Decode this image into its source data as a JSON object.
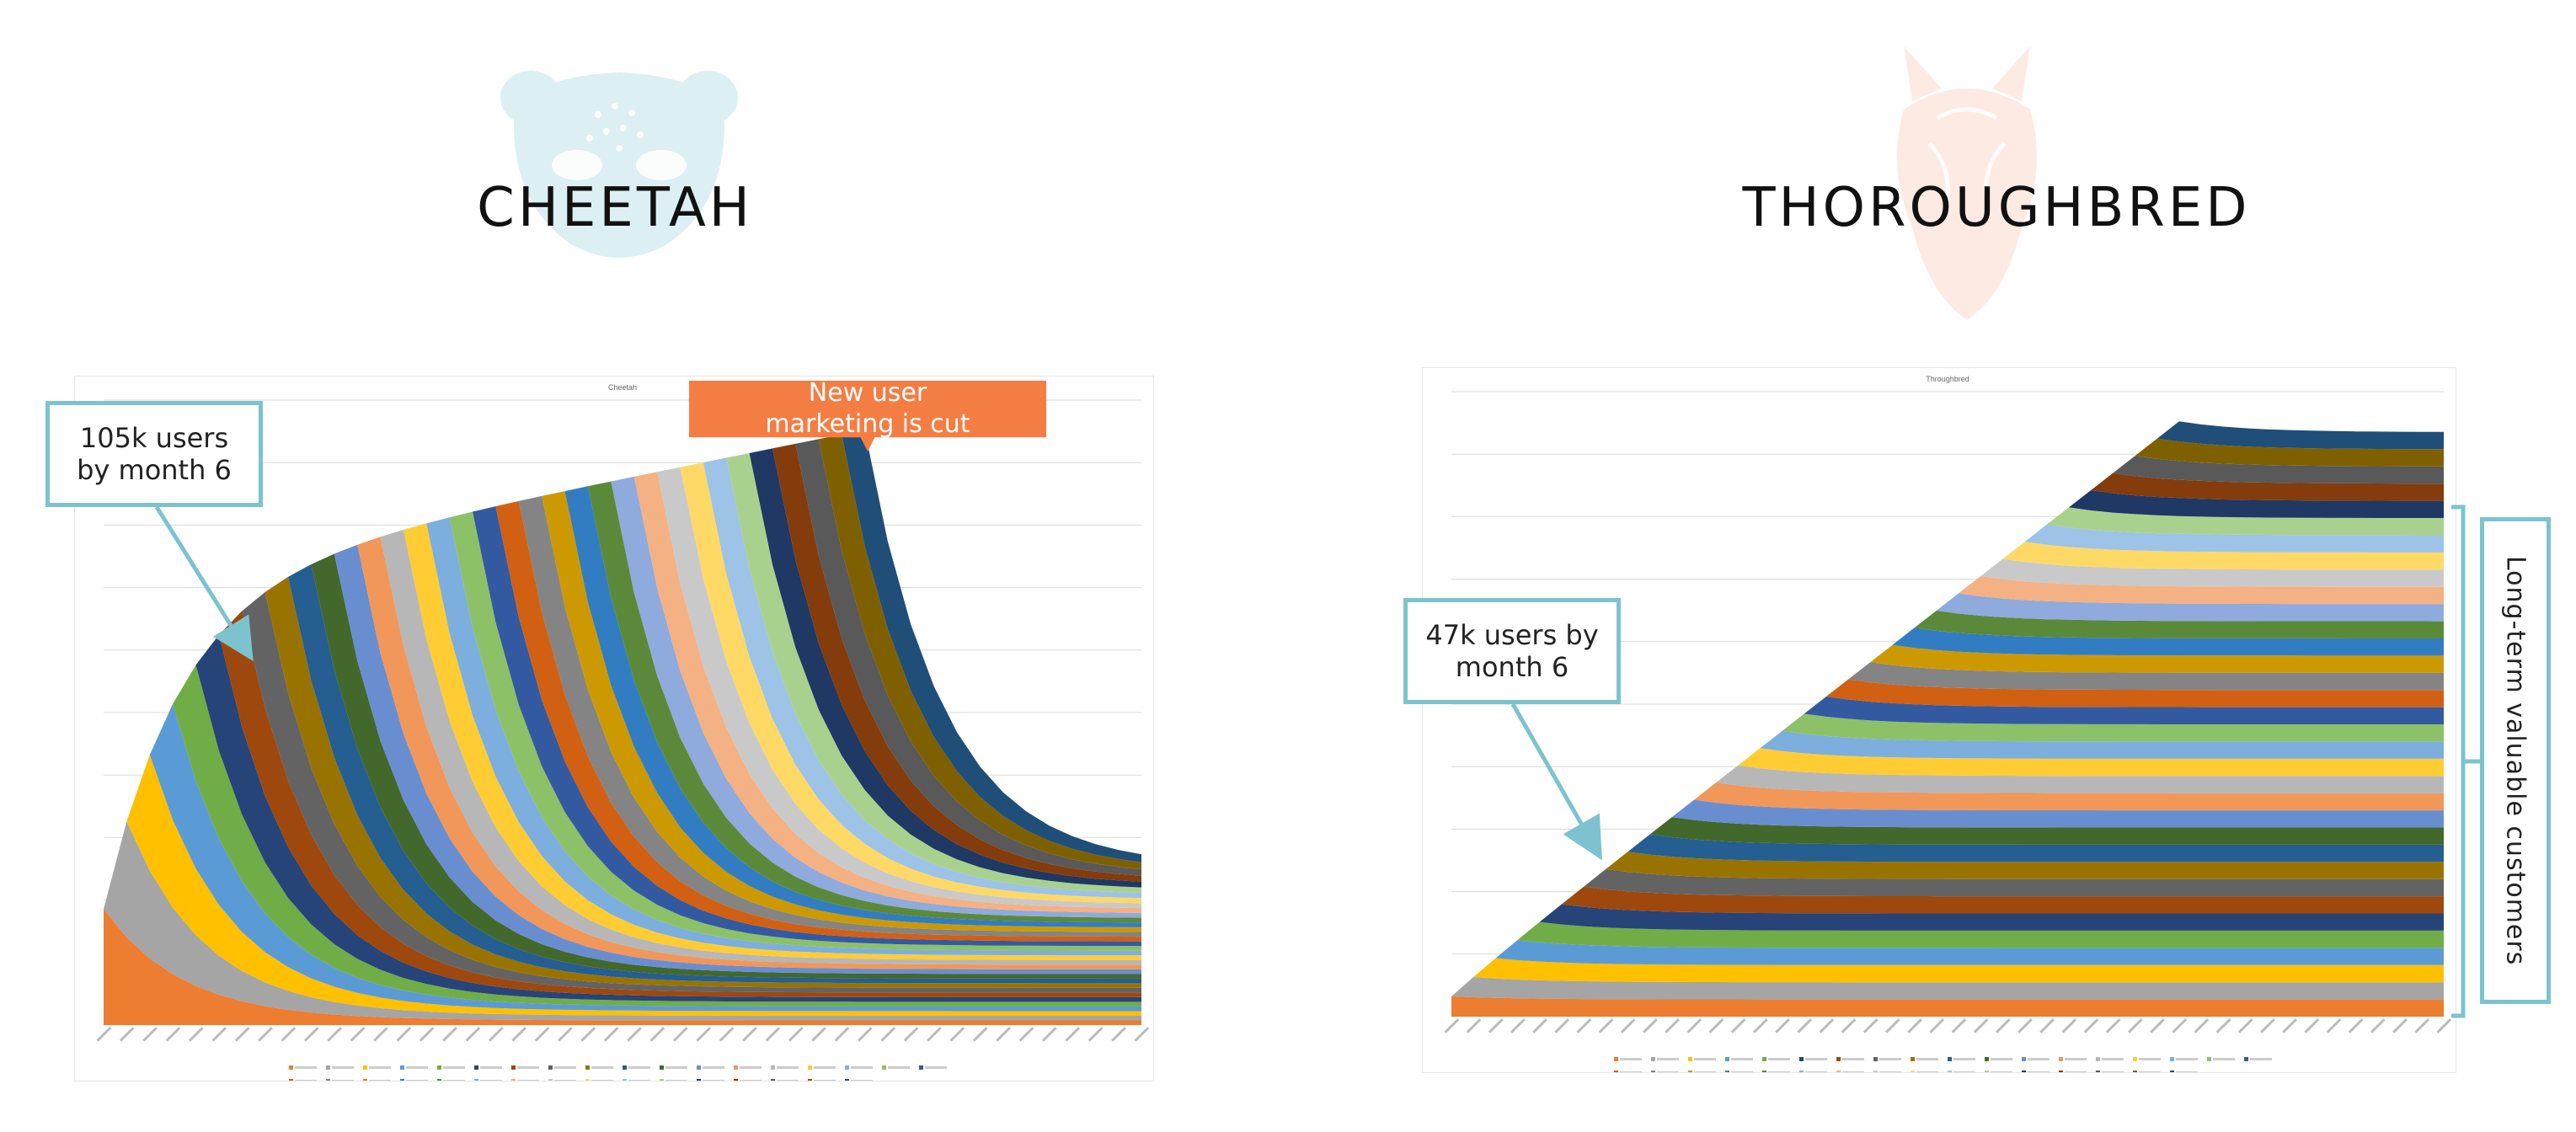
{
  "colors": {
    "accent_teal": "#7cc3cf",
    "banner_orange": "#f47d43",
    "cheetah_logo": "#dcefF2",
    "horse_logo": "#fdebe3"
  },
  "icons": {
    "cheetah_logo": "cheetah-face-icon",
    "horse_logo": "horse-head-icon"
  },
  "brands": {
    "cheetah": "CHEETAH",
    "thoroughbred": "THOROUGHBRED"
  },
  "annotations": {
    "cheetah_users": "105k users by month 6",
    "marketing_cut": "New user marketing is cut",
    "thoro_users": "47k users by month 6",
    "long_term": "Long-term valuable customers"
  },
  "chart_data": [
    {
      "type": "area",
      "title": "Cheetah",
      "stacked": true,
      "periods": 46,
      "cohorts": 34,
      "peak_total_users": 105000,
      "peak_period": 34,
      "retention": "steep decay, about 4% long-term",
      "grid": true,
      "legend": "bottom"
    },
    {
      "type": "area",
      "title": "Throughbred",
      "stacked": true,
      "periods": 46,
      "cohorts": 34,
      "users_month_6": 47000,
      "peak_period": 34,
      "retention": "gradual decay, about 85% long-term",
      "grid": true,
      "legend": "bottom"
    }
  ],
  "palette": [
    "#ed7d31",
    "#a5a5a5",
    "#ffc000",
    "#5b9bd5",
    "#70ad47",
    "#264478",
    "#9e480e",
    "#636363",
    "#997300",
    "#255e91",
    "#43682b",
    "#698ed0",
    "#f1975a",
    "#b7b7b7",
    "#ffcd33",
    "#7cafdd",
    "#8cc168",
    "#335aa1",
    "#d26012",
    "#848484",
    "#cc9a00",
    "#327dc2",
    "#5a8a39",
    "#8faadc",
    "#f4b183",
    "#c9c9c9",
    "#ffd966",
    "#9dc3e6",
    "#a9d18e",
    "#1f3864",
    "#843c0c",
    "#595959",
    "#7f6000",
    "#1f4e79"
  ]
}
